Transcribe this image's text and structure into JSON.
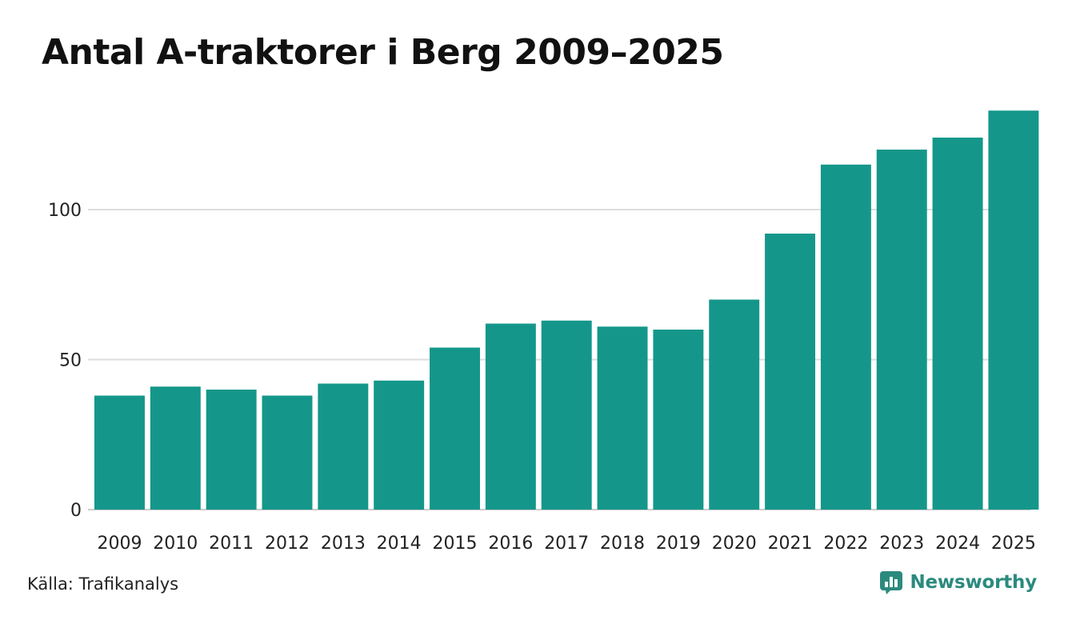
{
  "header": {
    "title": "Antal A-traktorer i Berg 2009–2025"
  },
  "footer": {
    "source": "Källa: Trafikanalys",
    "brand": "Newsworthy",
    "brand_color": "#2b8a7e"
  },
  "colors": {
    "bar": "#14978a",
    "gridline": "#dddddd",
    "axis": "#cccccc"
  },
  "chart_data": {
    "type": "bar",
    "title": "Antal A-traktorer i Berg 2009–2025",
    "xlabel": "",
    "ylabel": "",
    "categories": [
      "2009",
      "2010",
      "2011",
      "2012",
      "2013",
      "2014",
      "2015",
      "2016",
      "2017",
      "2018",
      "2019",
      "2020",
      "2021",
      "2022",
      "2023",
      "2024",
      "2025"
    ],
    "values": [
      38,
      41,
      40,
      38,
      42,
      43,
      54,
      62,
      63,
      61,
      60,
      70,
      92,
      115,
      120,
      124,
      133
    ],
    "ylim": [
      0,
      133
    ],
    "yticks": [
      0,
      50,
      100
    ],
    "grid": true,
    "legend": "none"
  }
}
